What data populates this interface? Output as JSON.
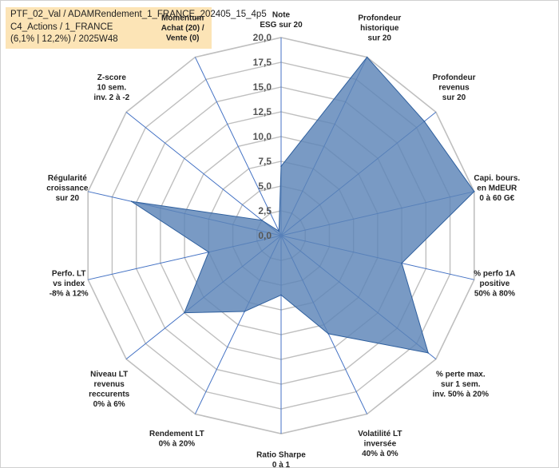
{
  "header": {
    "line1": "PTF_02_Val / ADAMRendement_1_FRANCE_202405_15_4p5",
    "line2": "C4_Actions / 1_FRANCE",
    "line3": "(6,1% | 12,2%) / 2025W48"
  },
  "chart_data": {
    "type": "radar",
    "ylim": [
      0,
      20
    ],
    "ticks": [
      "0,0",
      "2,5",
      "5,0",
      "7,5",
      "10,0",
      "12,5",
      "15,0",
      "17,5",
      "20,0"
    ],
    "axes": [
      [
        "Note",
        "ESG sur 20"
      ],
      [
        "Profondeur",
        "historique",
        "sur 20"
      ],
      [
        "Profondeur",
        "revenus",
        "sur 20"
      ],
      [
        "Capi. bours.",
        "en MdEUR",
        "0 à 60 G€"
      ],
      [
        "% perfo 1A",
        "positive",
        "50% à 80%"
      ],
      [
        "% perte max.",
        "sur 1 sem.",
        "inv. 50% à 20%"
      ],
      [
        "Volatilité LT",
        "inversée",
        "40% à 0%"
      ],
      [
        "Ratio Sharpe",
        "0 à 1"
      ],
      [
        "Rendement LT",
        "0% à 20%"
      ],
      [
        "Niveau LT",
        "revenus",
        "reccurents",
        "0% à 6%"
      ],
      [
        "Perfo. LT",
        "vs index",
        "-8% à 12%"
      ],
      [
        "Régularité",
        "croissance",
        "sur 20"
      ],
      [
        "Z-score",
        "10 sem.",
        "inv. 2 à -2"
      ],
      [
        "Momentum",
        "Achat (20) /",
        "Vente (0)"
      ]
    ],
    "series": [
      {
        "values": [
          7.0,
          20.0,
          18.5,
          20.0,
          12.5,
          19.0,
          11.0,
          6.0,
          8.5,
          12.5,
          7.5,
          15.5,
          2.5,
          0.5
        ]
      }
    ],
    "colors": {
      "fill": "#5b84b7",
      "stroke": "#2e5f9e",
      "grid": "#bfbfbf",
      "spoke": "#4472c4"
    },
    "grid": true
  }
}
